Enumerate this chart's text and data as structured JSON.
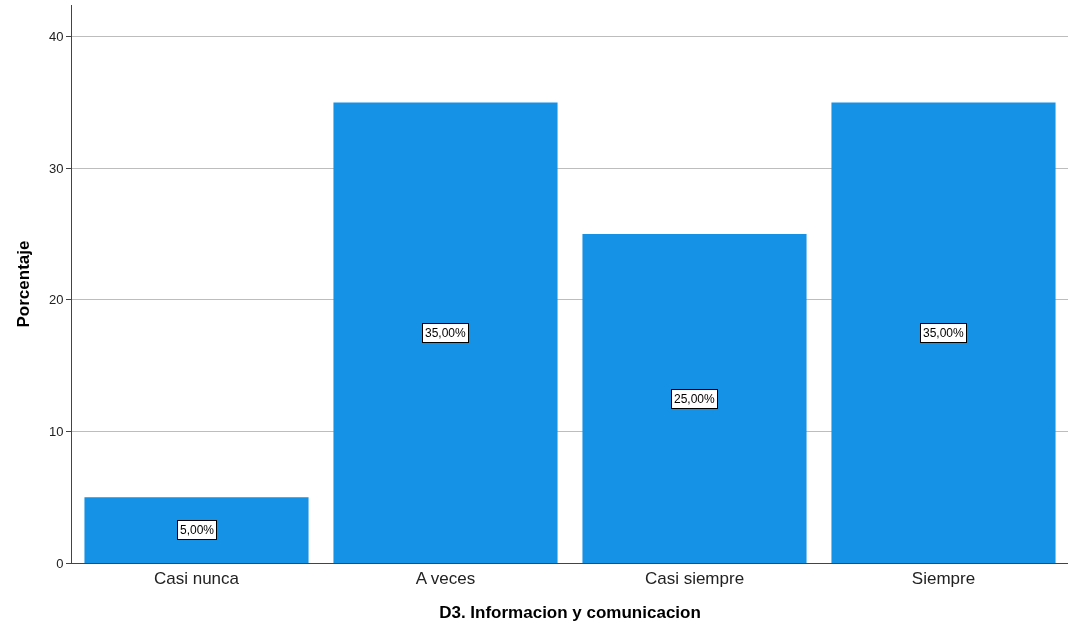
{
  "chart_data": {
    "type": "bar",
    "xlabel": "D3. Informacion y comunicacion",
    "ylabel": "Porcentaje",
    "categories": [
      "Casi nunca",
      "A veces",
      "Casi siempre",
      "Siempre"
    ],
    "values": [
      5,
      35,
      25,
      35
    ],
    "value_labels": [
      "5,00%",
      "35,00%",
      "25,00%",
      "35,00%"
    ],
    "color": "#1591e6",
    "ylim": [
      0,
      42.4
    ],
    "yticks": [
      0,
      10,
      20,
      30,
      40
    ],
    "grid": "y",
    "legend": false
  }
}
